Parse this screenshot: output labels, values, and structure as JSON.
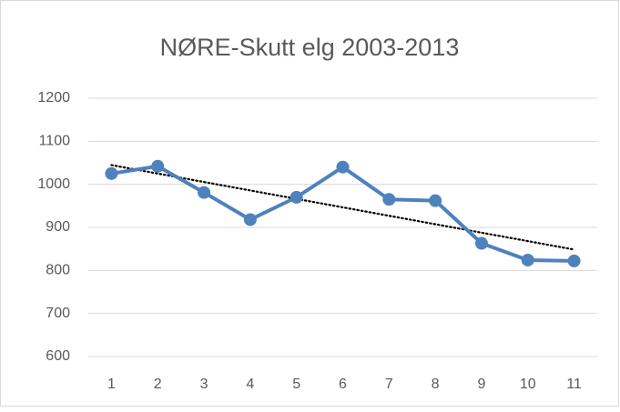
{
  "chart_data": {
    "type": "line",
    "title": "NØRE-Skutt elg 2003-2013",
    "categories": [
      "1",
      "2",
      "3",
      "4",
      "5",
      "6",
      "7",
      "8",
      "9",
      "10",
      "11"
    ],
    "series": [
      {
        "color": "#4f81bd",
        "values": [
          1025,
          1042,
          981,
          918,
          970,
          1040,
          965,
          962,
          863,
          824,
          822
        ]
      }
    ],
    "ylim": [
      600,
      1200
    ],
    "yticks": [
      600,
      700,
      800,
      900,
      1000,
      1100,
      1200
    ],
    "grid": true,
    "trendline": "linear"
  }
}
